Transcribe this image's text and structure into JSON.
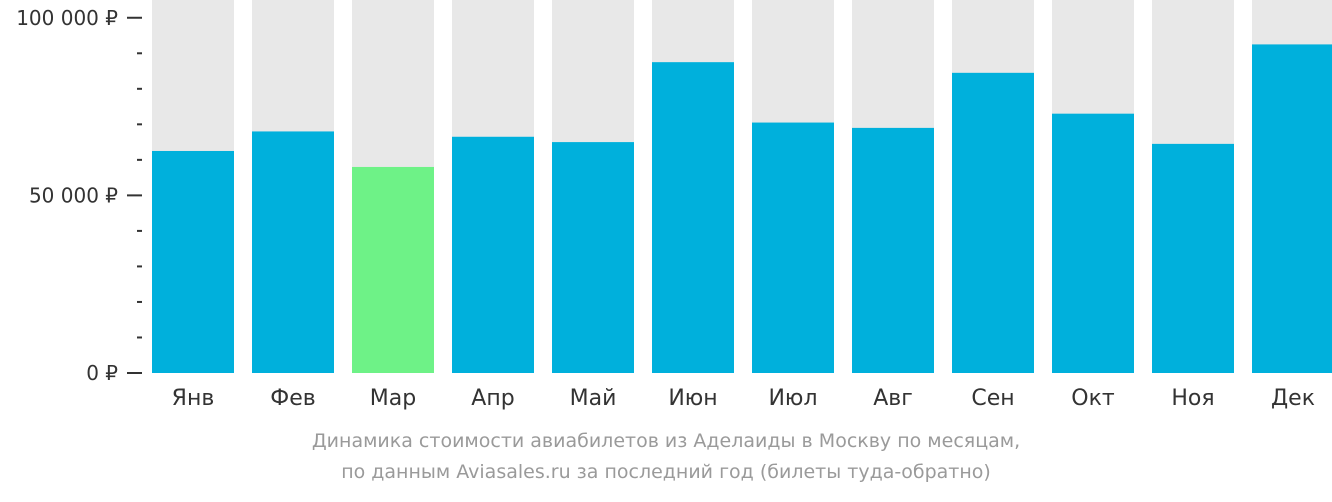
{
  "colors": {
    "bar": "#00b0dc",
    "highlight": "#6ef287",
    "track": "#e8e8e8",
    "axis": "#333333"
  },
  "chart_data": {
    "type": "bar",
    "categories": [
      "Янв",
      "Фев",
      "Мар",
      "Апр",
      "Май",
      "Июн",
      "Июл",
      "Авг",
      "Сен",
      "Окт",
      "Ноя",
      "Дек"
    ],
    "values": [
      62500,
      68000,
      58000,
      66500,
      65000,
      87500,
      70500,
      69000,
      84500,
      73000,
      64500,
      92500
    ],
    "highlight_index": 2,
    "ylim": [
      0,
      105000
    ],
    "y_ticks": [
      {
        "value": 0,
        "label": "0 ₽"
      },
      {
        "value": 50000,
        "label": "50 000 ₽"
      },
      {
        "value": 100000,
        "label": "100 000 ₽"
      }
    ],
    "minor_tick_step": 10000,
    "grid": false,
    "legend": "none"
  },
  "caption": {
    "line1": "Динамика стоимости авиабилетов из Аделаиды в Москву по месяцам,",
    "line2": "по данным Aviasales.ru за последний год (билеты туда-обратно)"
  }
}
